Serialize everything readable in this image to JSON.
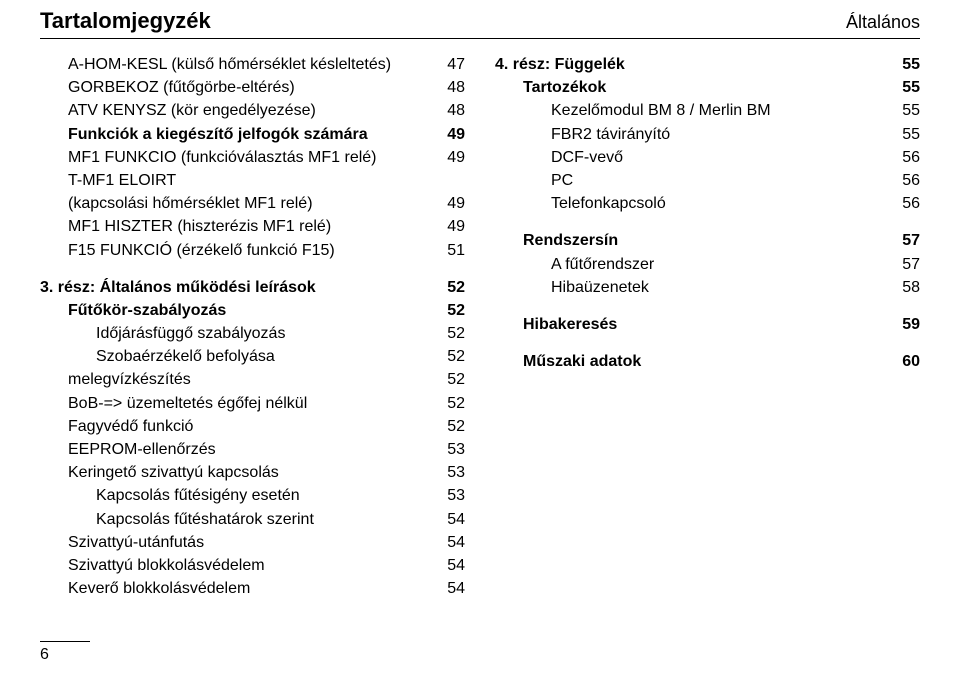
{
  "header": {
    "title": "Tartalomjegyzék",
    "category": "Általános"
  },
  "left": {
    "items": [
      {
        "label": "A-HOM-KESL (külső hőmérséklet késleltetés)",
        "num": "47",
        "indent": 1
      },
      {
        "label": "GORBEKOZ (fűtőgörbe-eltérés)",
        "num": "48",
        "indent": 1
      },
      {
        "label": "ATV KENYSZ (kör engedélyezése)",
        "num": "48",
        "indent": 1
      },
      {
        "label": "Funkciók a kiegészítő jelfogók számára",
        "num": "49",
        "indent": 1,
        "bold": true
      },
      {
        "label": "MF1 FUNKCIO (funkcióválasztás MF1 relé)",
        "num": "49",
        "indent": 1
      },
      {
        "label": "T-MF1 ELOIRT",
        "num": "",
        "indent": 1
      },
      {
        "label": "(kapcsolási hőmérséklet MF1 relé)",
        "num": "49",
        "indent": 1
      },
      {
        "label": "MF1 HISZTER (hiszterézis MF1 relé)",
        "num": "49",
        "indent": 1
      },
      {
        "label": "F15 FUNKCIÓ (érzékelő funkció F15)",
        "num": "51",
        "indent": 1
      }
    ],
    "section": {
      "heading": {
        "label": "3. rész: Általános működési leírások",
        "num": "52"
      },
      "items": [
        {
          "label": "Fűtőkör-szabályozás",
          "num": "52",
          "indent": 1,
          "bold": true
        },
        {
          "label": "Időjárásfüggő szabályozás",
          "num": "52",
          "indent": 2
        },
        {
          "label": "Szobaérzékelő befolyása",
          "num": "52",
          "indent": 2
        },
        {
          "label": "melegvízkészítés",
          "num": "52",
          "indent": 1
        },
        {
          "label": "BoB-=> üzemeltetés égőfej nélkül",
          "num": "52",
          "indent": 1
        },
        {
          "label": "Fagyvédő funkció",
          "num": "52",
          "indent": 1
        },
        {
          "label": "EEPROM-ellenőrzés",
          "num": "53",
          "indent": 1
        },
        {
          "label": "Keringető szivattyú kapcsolás",
          "num": "53",
          "indent": 1
        },
        {
          "label": "Kapcsolás fűtésigény esetén",
          "num": "53",
          "indent": 2
        },
        {
          "label": "Kapcsolás fűtéshatárok szerint",
          "num": "54",
          "indent": 2
        },
        {
          "label": "Szivattyú-utánfutás",
          "num": "54",
          "indent": 1
        },
        {
          "label": "Szivattyú blokkolásvédelem",
          "num": "54",
          "indent": 1
        },
        {
          "label": "Keverő blokkolásvédelem",
          "num": "54",
          "indent": 1
        }
      ]
    }
  },
  "right": {
    "groups": [
      {
        "heading": {
          "label": "4. rész: Függelék",
          "num": "55"
        },
        "items": [
          {
            "label": "Tartozékok",
            "num": "55",
            "indent": 1,
            "bold": true
          },
          {
            "label": "Kezelőmodul BM 8 / Merlin BM",
            "num": "55",
            "indent": 2
          },
          {
            "label": "FBR2 távirányító",
            "num": "55",
            "indent": 2
          },
          {
            "label": "DCF-vevő",
            "num": "56",
            "indent": 2
          },
          {
            "label": "PC",
            "num": "56",
            "indent": 2
          },
          {
            "label": "Telefonkapcsoló",
            "num": "56",
            "indent": 2
          }
        ]
      },
      {
        "heading": {
          "label": "Rendszersín",
          "num": "57",
          "indent": 1
        },
        "items": [
          {
            "label": "A fűtőrendszer",
            "num": "57",
            "indent": 2
          },
          {
            "label": "Hibaüzenetek",
            "num": "58",
            "indent": 2
          }
        ]
      },
      {
        "heading": {
          "label": "Hibakeresés",
          "num": "59",
          "indent": 1
        }
      },
      {
        "heading": {
          "label": "Műszaki adatok",
          "num": "60",
          "indent": 1
        }
      }
    ]
  },
  "footer": {
    "pageNumber": "6"
  }
}
